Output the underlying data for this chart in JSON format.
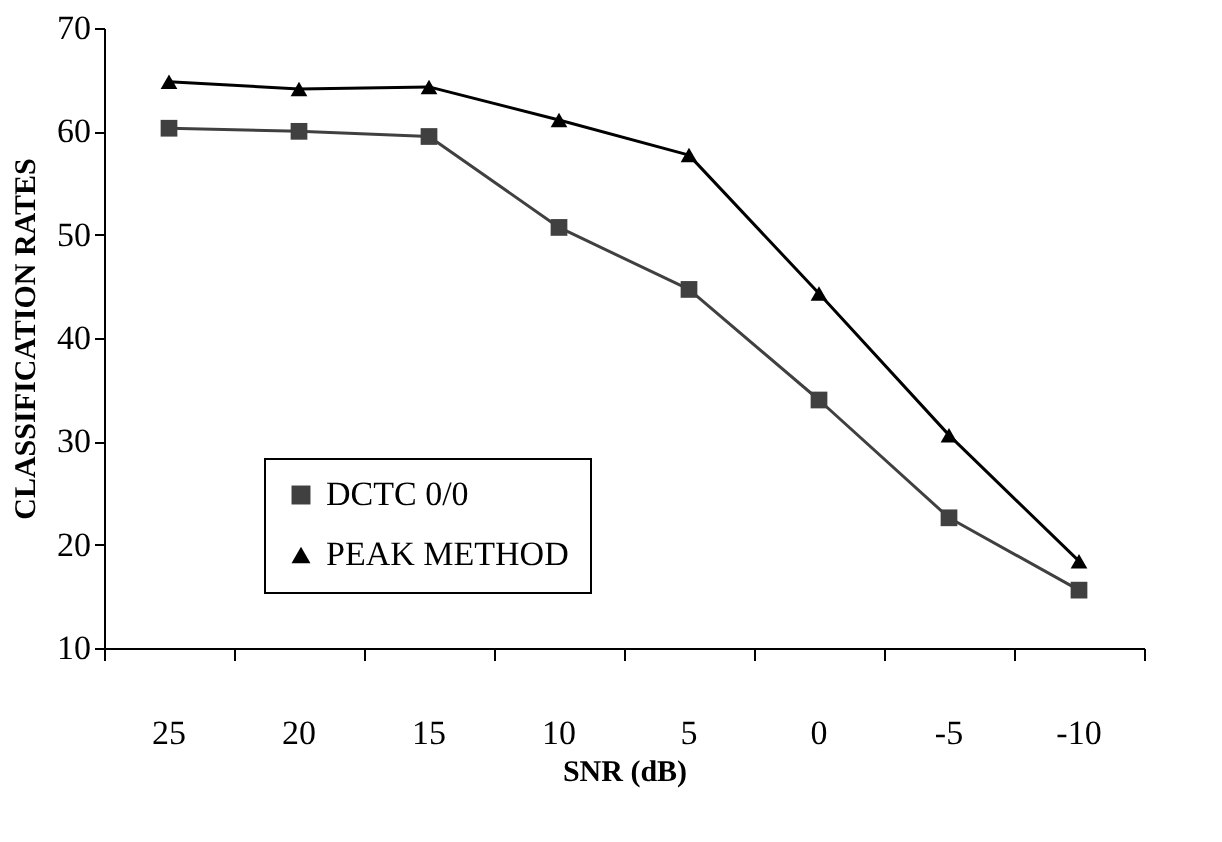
{
  "chart_data": {
    "type": "line",
    "xlabel": "SNR (dB)",
    "ylabel": "CLASSIFICATION RATES",
    "categories": [
      "25",
      "20",
      "15",
      "10",
      "5",
      "0",
      "-5",
      "-10"
    ],
    "series": [
      {
        "name": "DCTC 0/0",
        "color": "#404040",
        "marker": "square",
        "values": [
          60.3,
          60.0,
          59.5,
          50.7,
          44.7,
          34.0,
          22.6,
          15.6
        ]
      },
      {
        "name": "PEAK METHOD",
        "color": "#000000",
        "marker": "triangle",
        "values": [
          64.8,
          64.1,
          64.3,
          61.1,
          57.7,
          44.3,
          30.6,
          18.4
        ]
      }
    ],
    "ylim": [
      10,
      70
    ],
    "yticks": [
      10,
      20,
      30,
      40,
      50,
      60,
      70
    ],
    "grid": false,
    "legend": "bottom left",
    "line_style": "solid"
  }
}
